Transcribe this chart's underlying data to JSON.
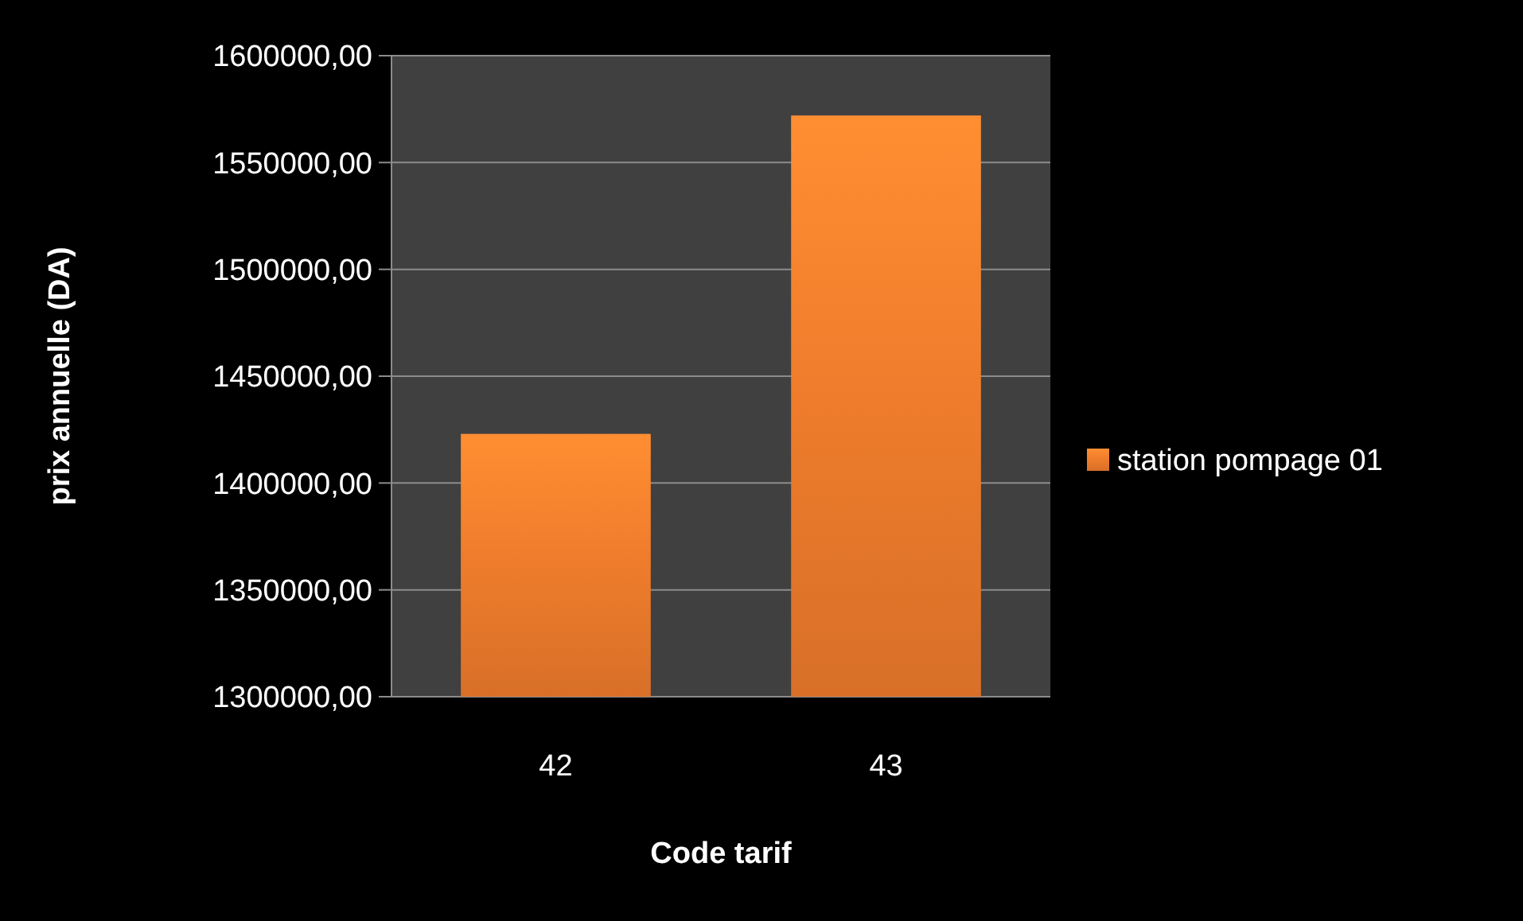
{
  "chart_data": {
    "type": "bar",
    "xlabel": "Code tarif",
    "ylabel": "prix annuelle (DA)",
    "categories": [
      "42",
      "43"
    ],
    "series": [
      {
        "name": "station pompage 01",
        "color": "#f07d2c",
        "values": [
          1423000,
          1572000
        ]
      }
    ],
    "ylim": [
      1300000,
      1600000
    ],
    "yticks": [
      {
        "value": 1300000,
        "label": "1300000,00"
      },
      {
        "value": 1350000,
        "label": "1350000,00"
      },
      {
        "value": 1400000,
        "label": "1400000,00"
      },
      {
        "value": 1450000,
        "label": "1450000,00"
      },
      {
        "value": 1500000,
        "label": "1500000,00"
      },
      {
        "value": 1550000,
        "label": "1550000,00"
      },
      {
        "value": 1600000,
        "label": "1600000,00"
      }
    ],
    "grid": "y",
    "legend": "right"
  }
}
